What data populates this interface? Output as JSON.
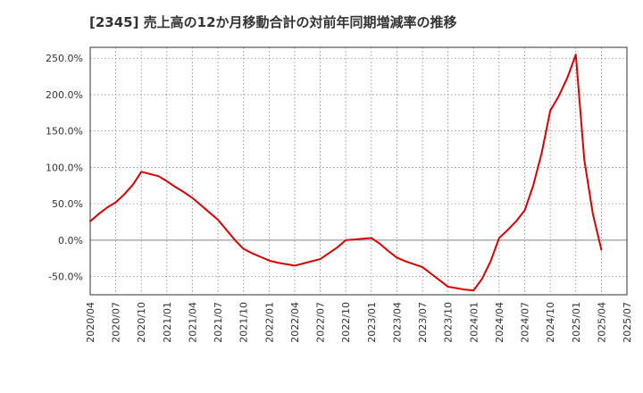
{
  "chart_data": {
    "type": "line",
    "title": "[2345]  売上高の12か月移動合計の対前年同期増減率の推移",
    "xlabel": "",
    "ylabel": "",
    "ylim": [
      -75,
      265
    ],
    "yticks": [
      -50,
      0,
      50,
      100,
      150,
      200,
      250
    ],
    "ytick_labels": [
      "-50.0%",
      "0.0%",
      "50.0%",
      "100.0%",
      "150.0%",
      "200.0%",
      "250.0%"
    ],
    "xlim": [
      "2020/04",
      "2025/07"
    ],
    "xtick_labels": [
      "2020/04",
      "2020/07",
      "2020/10",
      "2021/01",
      "2021/04",
      "2021/07",
      "2021/10",
      "2022/01",
      "2022/04",
      "2022/07",
      "2022/10",
      "2023/01",
      "2023/04",
      "2023/07",
      "2023/10",
      "2024/01",
      "2024/04",
      "2024/07",
      "2024/10",
      "2025/01",
      "2025/04",
      "2025/07"
    ],
    "grid": true,
    "series": [
      {
        "name": "対前年同期増減率",
        "color": "#dd0000",
        "x": [
          "2020/04",
          "2020/05",
          "2020/06",
          "2020/07",
          "2020/08",
          "2020/09",
          "2020/10",
          "2020/11",
          "2020/12",
          "2021/01",
          "2021/02",
          "2021/03",
          "2021/04",
          "2021/05",
          "2021/06",
          "2021/07",
          "2021/08",
          "2021/09",
          "2021/10",
          "2021/11",
          "2021/12",
          "2022/01",
          "2022/02",
          "2022/03",
          "2022/04",
          "2022/05",
          "2022/06",
          "2022/07",
          "2022/08",
          "2022/09",
          "2022/10",
          "2022/11",
          "2022/12",
          "2023/01",
          "2023/02",
          "2023/03",
          "2023/04",
          "2023/05",
          "2023/06",
          "2023/07",
          "2023/08",
          "2023/09",
          "2023/10",
          "2023/11",
          "2023/12",
          "2024/01",
          "2024/02",
          "2024/03",
          "2024/04",
          "2024/05",
          "2024/06",
          "2024/07",
          "2024/08",
          "2024/09",
          "2024/10",
          "2024/11",
          "2024/12",
          "2025/01",
          "2025/02",
          "2025/03",
          "2025/04"
        ],
        "values": [
          26,
          36,
          45,
          52,
          63,
          76,
          94,
          91,
          88,
          81,
          73,
          66,
          58,
          48,
          38,
          28,
          14,
          0,
          -12,
          -18,
          -23,
          -28,
          -31,
          -33,
          -35,
          -32,
          -29,
          -26,
          -18,
          -10,
          0,
          1,
          2,
          3,
          -5,
          -15,
          -24,
          -29,
          -33,
          -37,
          -46,
          -55,
          -64,
          -66,
          -68,
          -69,
          -53,
          -29,
          3,
          14,
          26,
          41,
          75,
          120,
          178,
          198,
          223,
          255,
          110,
          36,
          -13
        ]
      }
    ]
  }
}
